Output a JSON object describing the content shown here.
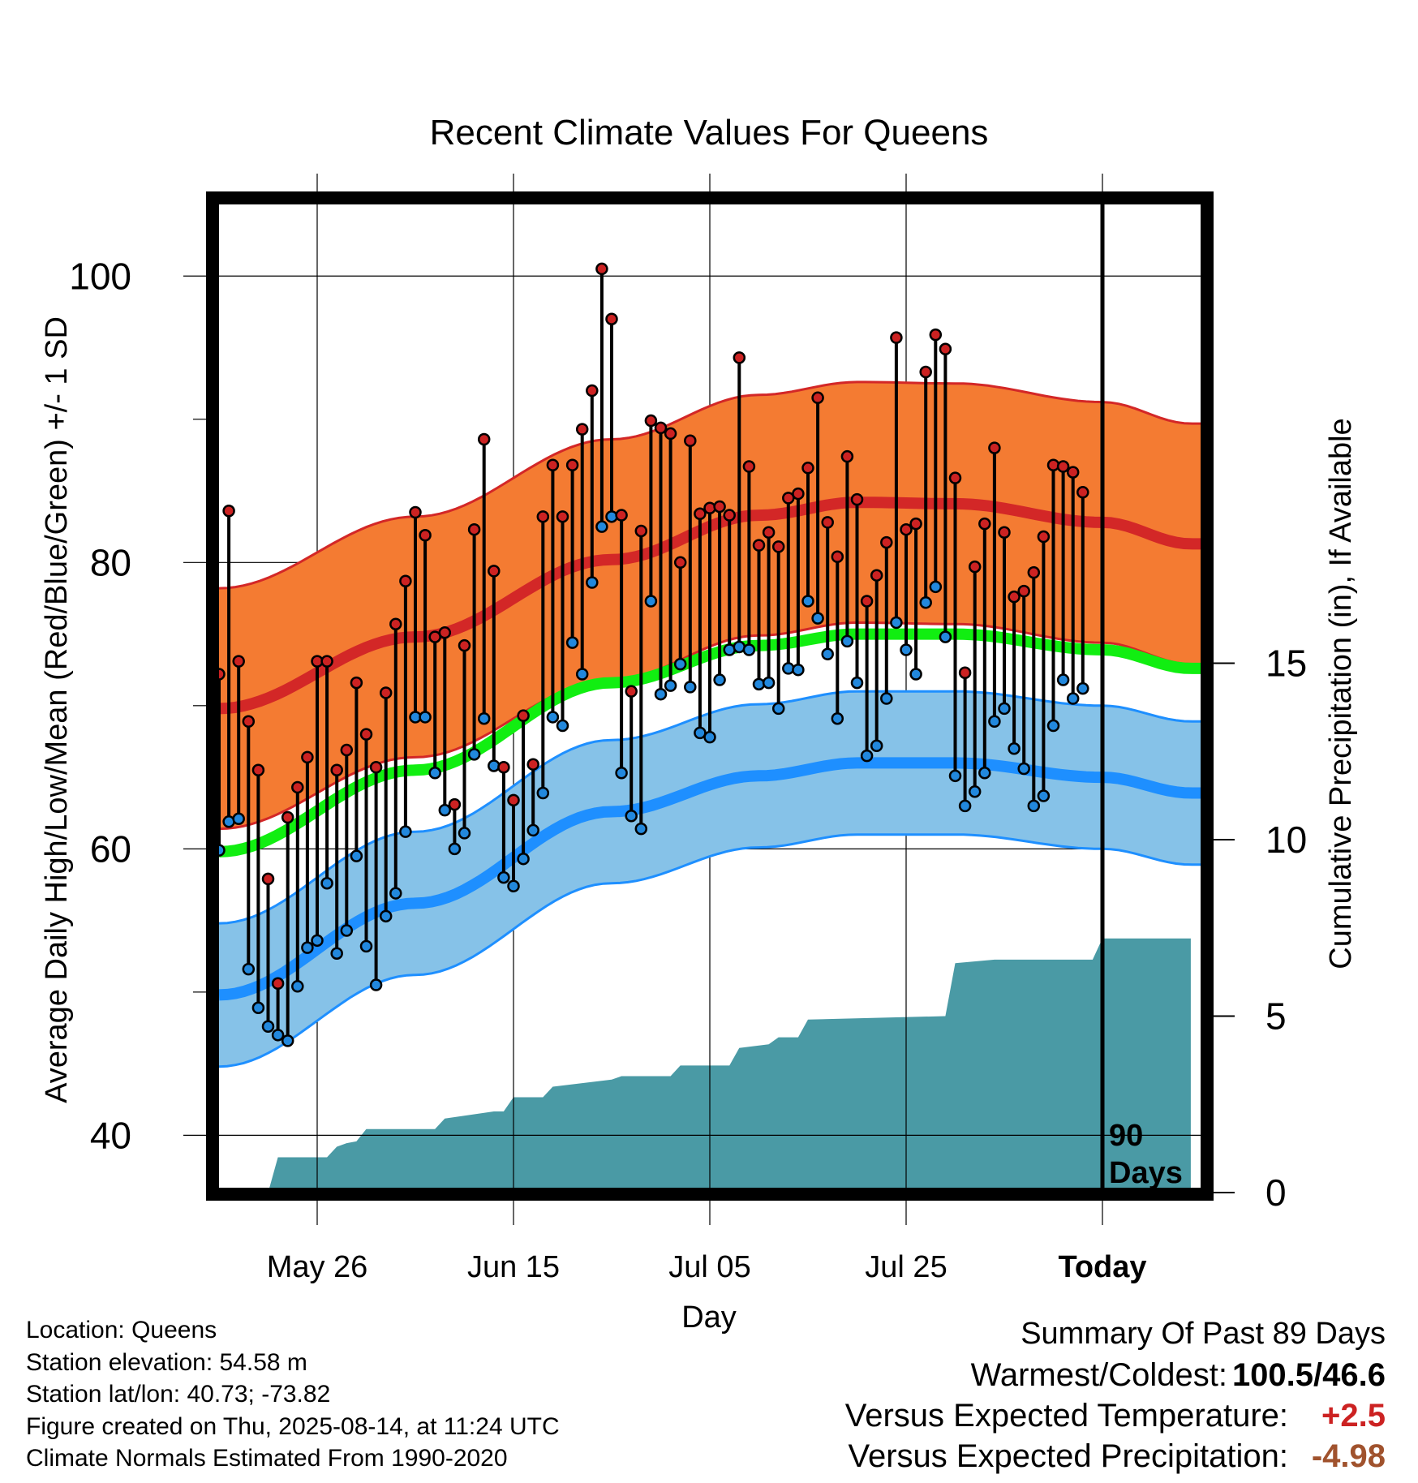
{
  "chart_data": {
    "type": "line",
    "title": "Recent Climate Values For Queens",
    "xlabel": "Day",
    "ylabel": "Average Daily High/Low/Mean (Red/Blue/Green) +/- 1 SD",
    "y2label": "Cumulative Precipitation (in), If Available",
    "x_tick_labels": [
      "May 26",
      "Jun 15",
      "Jul 05",
      "Jul 25",
      "Today"
    ],
    "x_tick_days": [
      10,
      30,
      50,
      70,
      90
    ],
    "xlim": [
      0,
      100
    ],
    "ylim": [
      36,
      105
    ],
    "y_ticks": [
      40,
      60,
      80,
      100
    ],
    "y_minor_ticks": [
      50,
      70,
      90
    ],
    "y2lim": [
      0,
      28
    ],
    "y2_ticks": [
      0,
      5,
      10,
      15
    ],
    "today_label": [
      "90",
      "Days"
    ],
    "normal_high": {
      "days": [
        0,
        20,
        40,
        55,
        65,
        75,
        90,
        99
      ],
      "mean": [
        69.8,
        74.8,
        80.2,
        83.3,
        84.2,
        84.1,
        82.8,
        81.3
      ],
      "sd": 8.4
    },
    "normal_low": {
      "days": [
        0,
        20,
        40,
        55,
        65,
        75,
        90,
        99
      ],
      "mean": [
        49.8,
        56.2,
        62.6,
        65.1,
        66.0,
        66.0,
        65.0,
        63.9
      ],
      "sd": 5.0
    },
    "normal_mean": {
      "days": [
        0,
        20,
        40,
        55,
        65,
        75,
        90,
        99
      ],
      "mean": [
        59.8,
        65.5,
        71.6,
        74.2,
        75.0,
        75.0,
        73.9,
        72.6
      ]
    },
    "series": [
      {
        "name": "High",
        "color": "#cc2222",
        "values": [
          72.2,
          83.6,
          73.1,
          68.9,
          65.5,
          57.9,
          50.6,
          62.2,
          64.3,
          66.4,
          73.1,
          73.1,
          65.5,
          66.9,
          71.6,
          68.0,
          65.7,
          70.9,
          75.7,
          78.7,
          83.5,
          81.9,
          74.8,
          75.1,
          63.1,
          74.2,
          82.3,
          88.6,
          79.4,
          65.7,
          63.4,
          69.3,
          65.9,
          83.2,
          86.8,
          83.2,
          86.8,
          89.3,
          92.0,
          100.5,
          97.0,
          83.3,
          71.0,
          82.2,
          89.9,
          89.4,
          89.0,
          80.0,
          88.5,
          83.4,
          83.8,
          83.9,
          83.3,
          94.3,
          86.7,
          81.2,
          82.1,
          81.1,
          84.5,
          84.8,
          86.6,
          91.5,
          82.8,
          80.4,
          87.4,
          84.4,
          77.3,
          79.1,
          81.4,
          95.7,
          82.3,
          82.7,
          93.3,
          95.9,
          94.9,
          85.9,
          72.3,
          79.7,
          82.7,
          88.0,
          82.1,
          77.6,
          78.0,
          79.3,
          81.8,
          86.8,
          86.7,
          86.3,
          84.9
        ]
      },
      {
        "name": "Low",
        "color": "#2288dd",
        "values": [
          59.9,
          61.9,
          62.1,
          51.6,
          48.9,
          47.6,
          47.0,
          46.6,
          50.4,
          53.1,
          53.6,
          57.6,
          52.7,
          54.3,
          59.5,
          53.2,
          50.5,
          55.3,
          56.9,
          61.2,
          69.2,
          69.2,
          65.3,
          62.7,
          60.0,
          61.1,
          66.6,
          69.1,
          65.8,
          58.0,
          57.4,
          59.3,
          61.3,
          63.9,
          69.2,
          68.6,
          74.4,
          72.2,
          78.6,
          82.5,
          83.2,
          65.3,
          62.3,
          61.4,
          77.3,
          70.8,
          71.4,
          72.9,
          71.3,
          68.1,
          67.8,
          71.8,
          73.9,
          74.1,
          73.9,
          71.5,
          71.6,
          69.8,
          72.6,
          72.5,
          77.3,
          76.1,
          73.6,
          69.1,
          74.5,
          71.6,
          66.5,
          67.2,
          70.5,
          75.8,
          73.9,
          72.2,
          77.2,
          78.3,
          74.8,
          65.1,
          63.0,
          64.0,
          65.3,
          68.9,
          69.8,
          67.0,
          65.6,
          63.0,
          63.7,
          68.6,
          71.8,
          70.5,
          71.2
        ]
      }
    ],
    "precipitation": {
      "name": "Cumulative Precipitation",
      "color": "#4a9aa5",
      "days": [
        0,
        5,
        6,
        11,
        12,
        13,
        14,
        15,
        16,
        22,
        23,
        28,
        29,
        30,
        33,
        34,
        40,
        41,
        46,
        47,
        52,
        53,
        56,
        57,
        59,
        60,
        74,
        75,
        79,
        89,
        90,
        99
      ],
      "values": [
        0,
        0,
        1.0,
        1.0,
        1.3,
        1.4,
        1.45,
        1.8,
        1.8,
        1.8,
        2.1,
        2.3,
        2.3,
        2.7,
        2.7,
        3.0,
        3.2,
        3.3,
        3.3,
        3.6,
        3.6,
        4.1,
        4.2,
        4.4,
        4.4,
        4.9,
        5.0,
        6.5,
        6.6,
        6.6,
        7.2,
        7.2
      ]
    }
  },
  "info": {
    "location": "Location: Queens",
    "elevation": "Station elevation: 54.58 m",
    "latlon": "Station lat/lon: 40.73; -73.82",
    "created": "Figure created on Thu, 2025-08-14, at 11:24 UTC",
    "normals": "Climate Normals Estimated From 1990-2020"
  },
  "summary": {
    "title": "Summary Of Past 89 Days",
    "warm_cold_label": "Warmest/Coldest:",
    "warm_cold_value": "100.5/46.6",
    "temp_label": "Versus Expected Temperature:",
    "temp_value": "+2.5",
    "temp_color": "#cc2222",
    "precip_label": "Versus Expected Precipitation:",
    "precip_value": "-4.98",
    "precip_color": "#a0522d"
  }
}
